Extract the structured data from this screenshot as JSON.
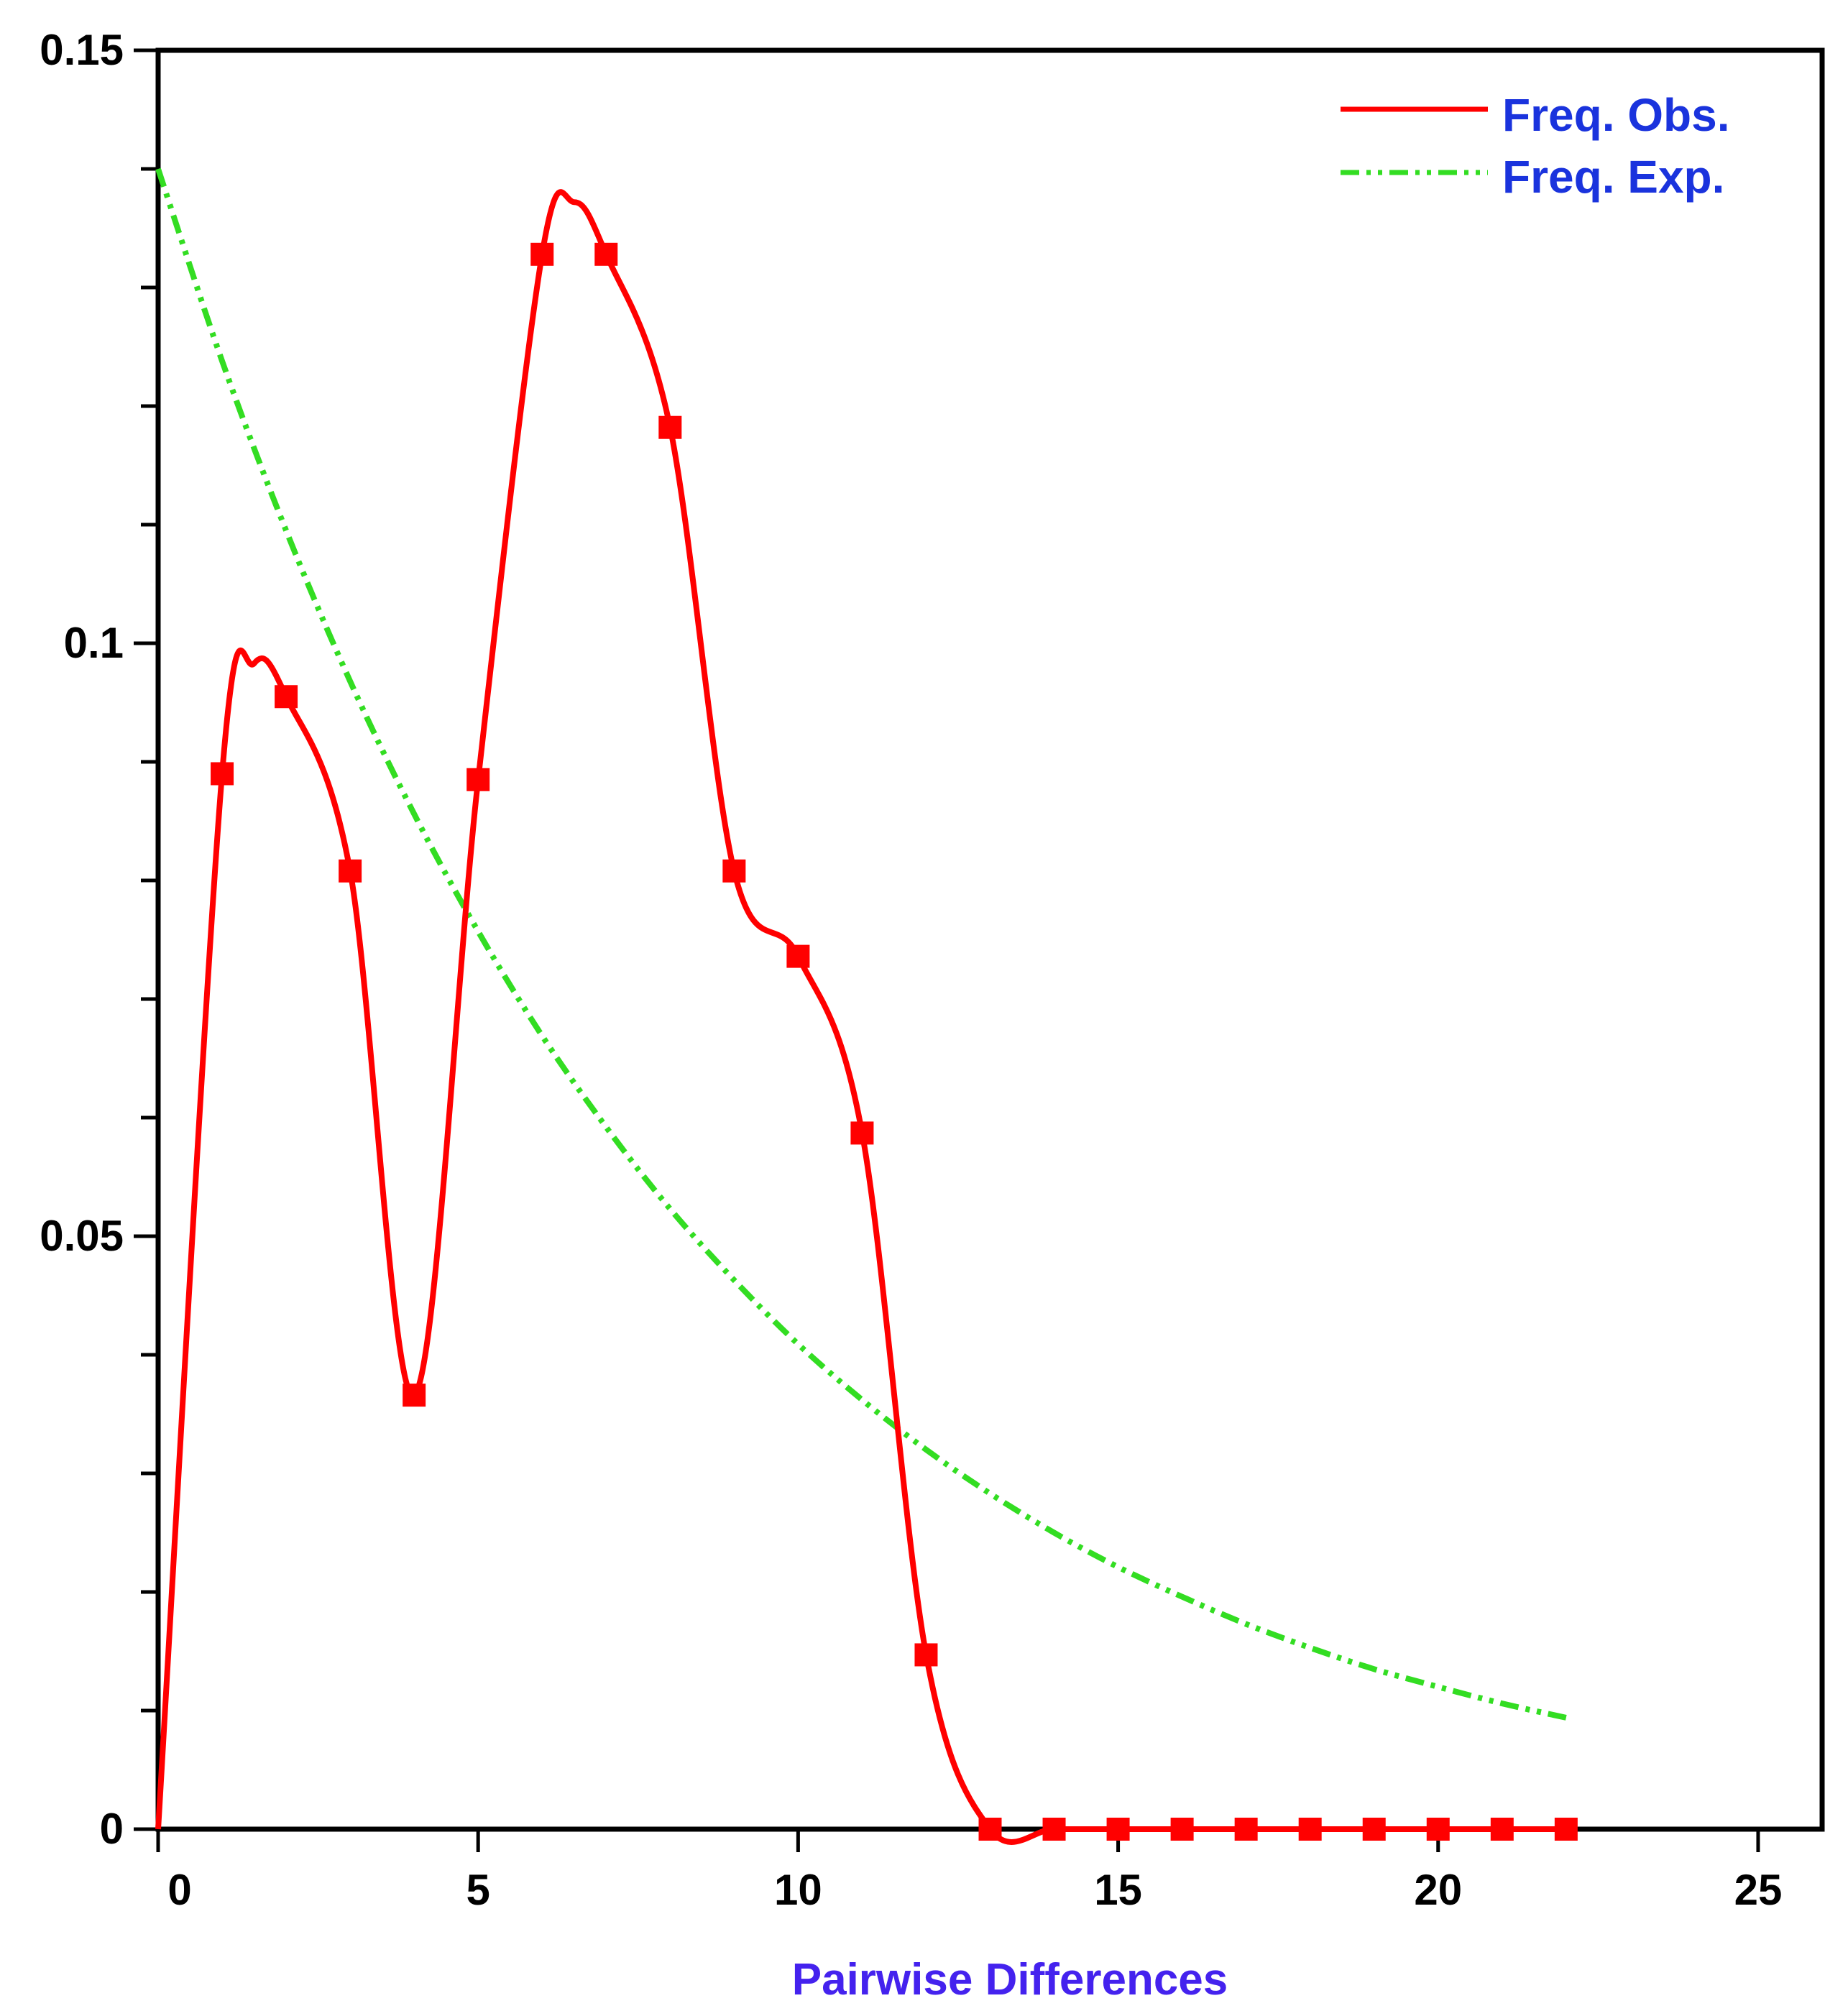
{
  "chart_data": {
    "type": "line",
    "title": "",
    "xlabel": "Pairwise Differences",
    "ylabel": "",
    "xlim": [
      0,
      26
    ],
    "ylim": [
      0,
      0.15
    ],
    "x_ticks": [
      0,
      5,
      10,
      15,
      20,
      25
    ],
    "x_tick_labels": [
      "0",
      "5",
      "10",
      "15",
      "20",
      "25"
    ],
    "y_ticks": [
      0,
      0.05,
      0.1,
      0.15
    ],
    "y_tick_labels": [
      "0",
      "0.05",
      "0.1",
      "0.15"
    ],
    "y_minor_step": 0.01,
    "legend": {
      "position": "top-right"
    },
    "grid": false,
    "series": [
      {
        "name": "Freq. Obs.",
        "color": "#ff0000",
        "style": "solid-with-square-markers",
        "x": [
          0,
          1,
          1.5,
          2,
          3,
          4,
          5,
          6,
          6.5,
          7,
          8,
          9,
          10,
          11,
          12,
          13,
          14,
          15,
          16,
          17,
          18,
          19,
          20,
          21,
          22
        ],
        "y": [
          0,
          0.089,
          0.0983,
          0.0955,
          0.0808,
          0.0366,
          0.0885,
          0.1328,
          0.1372,
          0.1328,
          0.1182,
          0.0808,
          0.0736,
          0.0587,
          0.0147,
          0,
          0,
          0,
          0,
          0,
          0,
          0,
          0,
          0,
          0
        ],
        "markers_x": [
          1,
          2,
          3,
          4,
          5,
          6,
          7,
          8,
          9,
          10,
          11,
          12,
          13,
          14,
          15,
          16,
          17,
          18,
          19,
          20,
          21,
          22
        ]
      },
      {
        "name": "Freq. Exp.",
        "color": "#33dd22",
        "style": "dash-dot-dot",
        "x": [
          0,
          1,
          2,
          3,
          4,
          5,
          6,
          7,
          8,
          9,
          10,
          11,
          12,
          13,
          14,
          15,
          16,
          17,
          18,
          19,
          20,
          21,
          22
        ],
        "y": [
          0.14,
          0.1238,
          0.1095,
          0.0968,
          0.0856,
          0.0757,
          0.0669,
          0.0592,
          0.0523,
          0.0463,
          0.0409,
          0.0362,
          0.032,
          0.0283,
          0.025,
          0.0221,
          0.0196,
          0.0173,
          0.0153,
          0.0135,
          0.012,
          0.0106,
          0.0094
        ]
      }
    ]
  },
  "colors": {
    "axis": "#000000",
    "axis_title": "#4422ee",
    "legend_text": "#1a33dd"
  }
}
